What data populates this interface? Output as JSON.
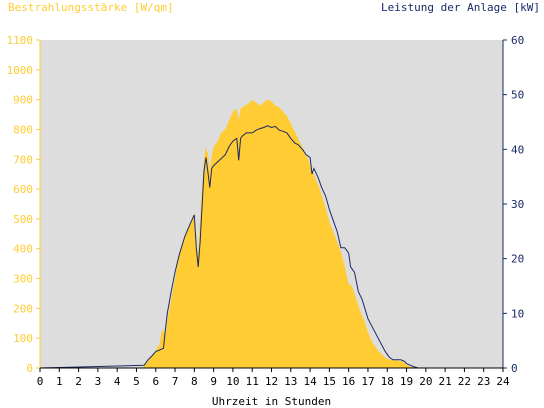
{
  "chart_data": {
    "type": "area",
    "left_axis_label": "Bestrahlungsstärke [W/qm]",
    "right_axis_label": "Leistung der Anlage [kW]",
    "xlabel": "Uhrzeit in Stunden",
    "xlim": [
      0,
      24
    ],
    "x_ticks": [
      "0",
      "1",
      "2",
      "3",
      "4",
      "5",
      "6",
      "7",
      "8",
      "9",
      "10",
      "11",
      "12",
      "13",
      "14",
      "15",
      "16",
      "17",
      "18",
      "19",
      "20",
      "21",
      "22",
      "23",
      "24"
    ],
    "left_ylim": [
      0,
      1100
    ],
    "left_ticks": [
      "0",
      "100",
      "200",
      "300",
      "400",
      "500",
      "600",
      "700",
      "800",
      "900",
      "1000",
      "1100"
    ],
    "right_ylim": [
      0,
      60
    ],
    "right_ticks": [
      "0",
      "10",
      "20",
      "30",
      "40",
      "50",
      "60"
    ],
    "grid": false,
    "colors": {
      "irradiance": "#ffcc33",
      "power": "#1a2a66",
      "plot_bg": "#dddddd",
      "left_axis": "#ffcc33",
      "right_axis": "#1a2a66"
    },
    "series": [
      {
        "name": "Bestrahlungsstärke",
        "axis": "left",
        "style": "area",
        "x": [
          0,
          5.3,
          5.5,
          5.8,
          6.0,
          6.2,
          6.3,
          6.4,
          6.5,
          6.6,
          6.8,
          7.0,
          7.2,
          7.5,
          7.8,
          8.0,
          8.1,
          8.2,
          8.3,
          8.5,
          8.6,
          8.7,
          8.8,
          8.9,
          9.0,
          9.2,
          9.4,
          9.6,
          9.8,
          10.0,
          10.2,
          10.3,
          10.4,
          10.6,
          10.8,
          11.0,
          11.2,
          11.4,
          11.6,
          11.8,
          12.0,
          12.2,
          12.4,
          12.6,
          12.8,
          13.0,
          13.3,
          13.6,
          13.9,
          14.0,
          14.2,
          14.5,
          14.8,
          15.0,
          15.3,
          15.6,
          15.8,
          16.0,
          16.1,
          16.2,
          16.4,
          16.6,
          16.8,
          17.0,
          17.2,
          17.5,
          17.8,
          18.0,
          18.2,
          18.4,
          18.6,
          18.8,
          19.0,
          19.2,
          19.4,
          19.6,
          20.0,
          24
        ],
        "y": [
          0,
          0,
          15,
          40,
          60,
          80,
          120,
          130,
          100,
          160,
          230,
          300,
          380,
          440,
          490,
          520,
          420,
          380,
          500,
          700,
          740,
          720,
          660,
          710,
          740,
          760,
          790,
          800,
          830,
          860,
          870,
          830,
          870,
          880,
          885,
          900,
          890,
          880,
          890,
          900,
          895,
          880,
          875,
          860,
          845,
          820,
          780,
          740,
          700,
          680,
          650,
          600,
          540,
          490,
          440,
          390,
          340,
          280,
          280,
          270,
          230,
          190,
          160,
          120,
          90,
          60,
          40,
          30,
          28,
          26,
          24,
          22,
          10,
          5,
          2,
          0,
          0,
          0
        ]
      },
      {
        "name": "Leistung der Anlage",
        "axis": "right",
        "style": "line",
        "x": [
          0,
          5.4,
          5.6,
          5.8,
          6.0,
          6.2,
          6.4,
          6.5,
          6.6,
          6.8,
          7.0,
          7.2,
          7.5,
          7.8,
          8.0,
          8.1,
          8.2,
          8.3,
          8.5,
          8.6,
          8.7,
          8.8,
          8.9,
          9.0,
          9.3,
          9.6,
          9.8,
          10.0,
          10.2,
          10.3,
          10.4,
          10.5,
          10.7,
          11.0,
          11.2,
          11.4,
          11.6,
          11.8,
          12.0,
          12.2,
          12.4,
          12.6,
          12.8,
          13.0,
          13.2,
          13.4,
          13.6,
          13.8,
          14.0,
          14.1,
          14.2,
          14.4,
          14.6,
          14.8,
          15.0,
          15.2,
          15.4,
          15.6,
          15.8,
          16.0,
          16.1,
          16.3,
          16.5,
          16.7,
          17.0,
          17.3,
          17.6,
          17.9,
          18.1,
          18.3,
          18.5,
          18.7,
          18.9,
          19.0,
          19.2,
          19.4,
          19.6,
          20.0,
          24
        ],
        "y": [
          0,
          0.5,
          1.5,
          2.2,
          3.0,
          3.3,
          3.6,
          7.0,
          10.0,
          14.0,
          17.5,
          20.5,
          24.0,
          26.5,
          28.0,
          22.0,
          18.5,
          23.0,
          36.0,
          38.5,
          36.0,
          33.0,
          36.5,
          37.0,
          38.0,
          39.0,
          40.5,
          41.5,
          42.0,
          38.0,
          42.0,
          42.5,
          43.0,
          43.0,
          43.5,
          43.8,
          44.0,
          44.3,
          44.0,
          44.2,
          43.5,
          43.3,
          43.0,
          42.0,
          41.2,
          40.8,
          40.0,
          39.0,
          38.5,
          35.5,
          36.5,
          35.0,
          33.0,
          31.5,
          29.0,
          27.0,
          25.0,
          22.0,
          22.0,
          21.0,
          18.5,
          17.5,
          14.0,
          12.5,
          9.0,
          7.0,
          5.0,
          3.0,
          2.0,
          1.5,
          1.5,
          1.5,
          1.2,
          0.8,
          0.5,
          0.2,
          0,
          0,
          0
        ]
      }
    ]
  }
}
